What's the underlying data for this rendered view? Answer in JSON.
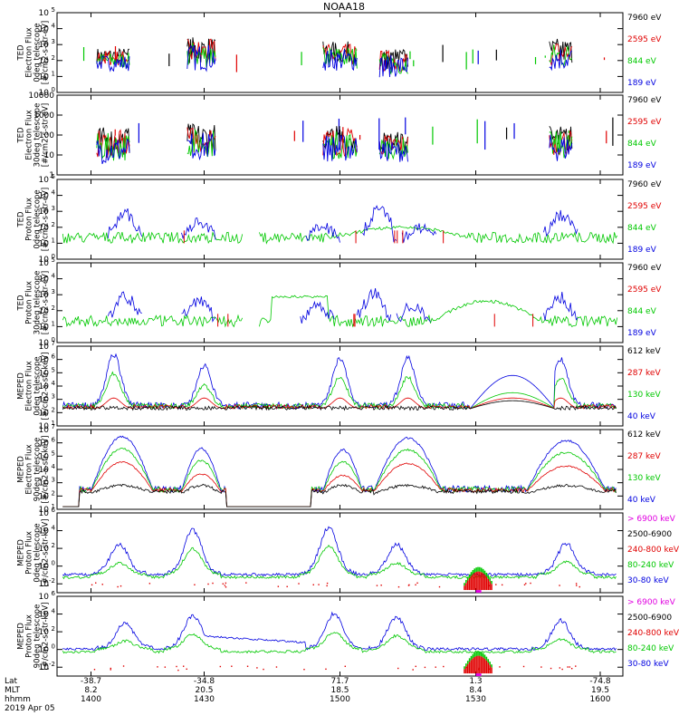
{
  "title": "NOAA18",
  "colors": {
    "black": "#000000",
    "red": "#e00000",
    "green": "#00c800",
    "blue": "#0000e0",
    "magenta": "#e000e0"
  },
  "chart_data": [
    {
      "type": "line",
      "instrument": "TED",
      "quantity": "Electron Flux",
      "ylabel": [
        "TED",
        "Electron Flux",
        "0deg telescope",
        "[#/cm2-s-str-eV]"
      ],
      "scale": "log",
      "ylim_exp": [
        0,
        5
      ],
      "yticks": [
        "10^0",
        "10^1",
        "10^2",
        "10^3",
        "10^4",
        "10^5"
      ],
      "legend": [
        {
          "label": "7960 eV",
          "color": "black"
        },
        {
          "label": "2595 eV",
          "color": "red"
        },
        {
          "label": "844 eV",
          "color": "green"
        },
        {
          "label": "189 eV",
          "color": "blue"
        }
      ],
      "series_style": "sparse",
      "clusters": [
        [
          0.07,
          0.13,
          1.8,
          2.8
        ],
        [
          0.23,
          0.28,
          1.8,
          3.5
        ],
        [
          0.47,
          0.53,
          1.8,
          3.2
        ],
        [
          0.57,
          0.62,
          1.4,
          2.8
        ],
        [
          0.87,
          0.91,
          1.8,
          3.4
        ]
      ]
    },
    {
      "type": "line",
      "instrument": "TED",
      "quantity": "Electron Flux",
      "ylabel": [
        "TED",
        "Electron Flux",
        "30deg telescope",
        "[#/cm2-s-str-eV]"
      ],
      "scale": "log",
      "ylim_exp": [
        0,
        4
      ],
      "yticks": [
        "1",
        "10",
        "100",
        "1000",
        "10000"
      ],
      "legend": [
        {
          "label": "7960 eV",
          "color": "black"
        },
        {
          "label": "2595 eV",
          "color": "red"
        },
        {
          "label": "844 eV",
          "color": "green"
        },
        {
          "label": "189 eV",
          "color": "blue"
        }
      ],
      "series_style": "sparse",
      "clusters": [
        [
          0.07,
          0.13,
          1.0,
          2.4
        ],
        [
          0.23,
          0.28,
          1.2,
          2.6
        ],
        [
          0.47,
          0.53,
          1.1,
          2.5
        ],
        [
          0.57,
          0.62,
          1.1,
          2.2
        ],
        [
          0.87,
          0.91,
          1.1,
          2.5
        ]
      ]
    },
    {
      "type": "line",
      "instrument": "TED",
      "quantity": "Proton Flux",
      "ylabel": [
        "TED",
        "Proton Flux",
        "0deg telescope",
        "[#/cm2-s-str-eV]"
      ],
      "scale": "log",
      "ylim_exp": [
        0,
        5
      ],
      "yticks": [
        "10^0",
        "10^1",
        "10^2",
        "10^3",
        "10^4",
        "10^5"
      ],
      "legend": [
        {
          "label": "7960 eV",
          "color": "black"
        },
        {
          "label": "2595 eV",
          "color": "red"
        },
        {
          "label": "844 eV",
          "color": "green"
        },
        {
          "label": "189 eV",
          "color": "blue"
        }
      ],
      "series_style": "proton",
      "blue_peaks": [
        [
          0.12,
          2.9
        ],
        [
          0.25,
          2.4
        ],
        [
          0.47,
          2.0
        ],
        [
          0.57,
          3.2
        ],
        [
          0.64,
          1.9
        ],
        [
          0.89,
          2.8
        ]
      ],
      "green_dome": [
        0.4,
        0.82,
        1.9
      ]
    },
    {
      "type": "line",
      "instrument": "TED",
      "quantity": "Proton Flux",
      "ylabel": [
        "TED",
        "Proton Flux",
        "30deg telescope",
        "[#/cm2-s-str-eV]"
      ],
      "scale": "log",
      "ylim_exp": [
        0,
        5
      ],
      "yticks": [
        "10^0",
        "10^1",
        "10^2",
        "10^3",
        "10^4",
        "10^5"
      ],
      "legend": [
        {
          "label": "7960 eV",
          "color": "black"
        },
        {
          "label": "2595 eV",
          "color": "red"
        },
        {
          "label": "844 eV",
          "color": "green"
        },
        {
          "label": "189 eV",
          "color": "blue"
        }
      ],
      "series_style": "proton",
      "blue_peaks": [
        [
          0.12,
          2.9
        ],
        [
          0.25,
          2.6
        ],
        [
          0.46,
          2.3
        ],
        [
          0.56,
          3.1
        ],
        [
          0.63,
          2.3
        ],
        [
          0.89,
          2.8
        ]
      ],
      "green_dome": [
        0.62,
        0.9,
        2.5
      ],
      "green_plateau": [
        0.38,
        0.48,
        2.8
      ]
    },
    {
      "type": "line",
      "instrument": "MEPED",
      "quantity": "Electron Flux",
      "ylabel": [
        "MEPED",
        "Electron Flux",
        "0deg telescope",
        "[#/cm2-s-str-keV]"
      ],
      "scale": "log",
      "ylim_exp": [
        1,
        7
      ],
      "yticks": [
        "10^1",
        "10^2",
        "10^3",
        "10^4",
        "10^5",
        "10^6",
        "10^7"
      ],
      "legend": [
        {
          "label": "612 keV",
          "color": "black"
        },
        {
          "label": "287 keV",
          "color": "red"
        },
        {
          "label": "130 keV",
          "color": "green"
        },
        {
          "label": "40 keV",
          "color": "blue"
        }
      ],
      "series_style": "meped_e",
      "blue_peaks": [
        [
          0.1,
          6.2
        ],
        [
          0.26,
          5.3
        ],
        [
          0.5,
          5.9
        ],
        [
          0.62,
          5.9
        ],
        [
          0.89,
          5.8
        ]
      ],
      "dome": [
        0.73,
        0.88,
        4.8
      ]
    },
    {
      "type": "line",
      "instrument": "MEPED",
      "quantity": "Electron Flux",
      "ylabel": [
        "MEPED",
        "Electron Flux",
        "90deg telescope",
        "[#/cm2-s-str-keV]"
      ],
      "scale": "log",
      "ylim_exp": [
        1,
        7
      ],
      "yticks": [
        "10^1",
        "10^2",
        "10^3",
        "10^4",
        "10^5",
        "10^6",
        "10^7"
      ],
      "legend": [
        {
          "label": "612 keV",
          "color": "black"
        },
        {
          "label": "287 keV",
          "color": "red"
        },
        {
          "label": "130 keV",
          "color": "green"
        },
        {
          "label": "40 keV",
          "color": "blue"
        }
      ],
      "series_style": "meped_e90",
      "domes": [
        [
          0.06,
          0.17,
          6.4
        ],
        [
          0.22,
          0.29,
          5.5
        ],
        [
          0.47,
          0.54,
          5.4
        ],
        [
          0.56,
          0.68,
          6.3
        ],
        [
          0.83,
          0.97,
          6.1
        ]
      ],
      "dome": [
        0.73,
        0.76,
        3.2
      ]
    },
    {
      "type": "line",
      "instrument": "MEPED",
      "quantity": "Proton Flux",
      "ylabel": [
        "MEPED",
        "Proton Flux",
        "0deg telescope",
        "[#/cm2-s-str-keV]"
      ],
      "scale": "log",
      "ylim_exp": [
        -3,
        6
      ],
      "yticks": [
        "10^-2",
        "10^0",
        "10^2",
        "10^4",
        "10^6"
      ],
      "ytick_exps": [
        -2,
        0,
        2,
        4,
        6
      ],
      "legend": [
        {
          "label": "> 6900 keV",
          "color": "magenta"
        },
        {
          "label": "2500-6900",
          "color": "black"
        },
        {
          "label": "240-800 keV",
          "color": "red"
        },
        {
          "label": "80-240 keV",
          "color": "green"
        },
        {
          "label": "30-80 keV",
          "color": "blue"
        }
      ],
      "series_style": "meped_p",
      "blue_peaks": [
        [
          0.11,
          2.2
        ],
        [
          0.24,
          3.8
        ],
        [
          0.48,
          4.1
        ],
        [
          0.6,
          2.2
        ],
        [
          0.9,
          2.3
        ]
      ],
      "dome": [
        0.72,
        0.77,
        -0.6
      ]
    },
    {
      "type": "line",
      "instrument": "MEPED",
      "quantity": "Proton Flux",
      "ylabel": [
        "MEPED",
        "Proton Flux",
        "90deg telescope",
        "[#/cm2-s-str-keV]"
      ],
      "scale": "log",
      "ylim_exp": [
        -3,
        6
      ],
      "yticks": [
        "10^-2",
        "10^0",
        "10^2",
        "10^4",
        "10^6"
      ],
      "ytick_exps": [
        -2,
        0,
        2,
        4,
        6
      ],
      "legend": [
        {
          "label": "> 6900 keV",
          "color": "magenta"
        },
        {
          "label": "2500-6900",
          "color": "black"
        },
        {
          "label": "240-800 keV",
          "color": "red"
        },
        {
          "label": "80-240 keV",
          "color": "green"
        },
        {
          "label": "30-80 keV",
          "color": "blue"
        }
      ],
      "series_style": "meped_p90",
      "blue_peaks": [
        [
          0.12,
          2.8
        ],
        [
          0.24,
          3.6
        ],
        [
          0.49,
          3.8
        ],
        [
          0.6,
          3.4
        ],
        [
          0.89,
          3.0
        ]
      ],
      "dome": [
        0.72,
        0.77,
        -0.7
      ]
    }
  ],
  "x_axis": {
    "rows": [
      "Lat",
      "MLT",
      "hhmm"
    ],
    "date": "2019 Apr 05",
    "ticks": [
      {
        "lat": "-38.7",
        "mlt": "8.2",
        "hhmm": "1400"
      },
      {
        "lat": "-34.8",
        "mlt": "20.5",
        "hhmm": "1430"
      },
      {
        "lat": "71.7",
        "mlt": "18.5",
        "hhmm": "1500"
      },
      {
        "lat": "1.3",
        "mlt": "8.4",
        "hhmm": "1530"
      },
      {
        "lat": "-74.8",
        "mlt": "19.5",
        "hhmm": "1600"
      }
    ]
  }
}
